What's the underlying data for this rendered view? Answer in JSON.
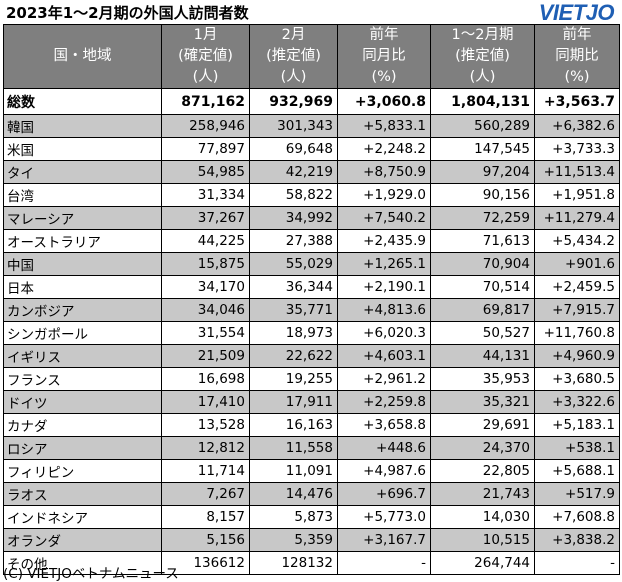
{
  "title": "2023年1～2月期の外国人訪問者数",
  "logo": "VIETJO",
  "headers": [
    {
      "lines": [
        "国・地域"
      ]
    },
    {
      "lines": [
        "1月",
        "(確定値)",
        "(人)"
      ]
    },
    {
      "lines": [
        "2月",
        "(推定値)",
        "(人)"
      ]
    },
    {
      "lines": [
        "前年",
        "同月比",
        "(%)"
      ]
    },
    {
      "lines": [
        "1～2月期",
        "(推定値)",
        "(人)"
      ]
    },
    {
      "lines": [
        "前年",
        "同期比",
        "(%)"
      ]
    }
  ],
  "total": [
    "総数",
    "871,162",
    "932,969",
    "+3,060.8",
    "1,804,131",
    "+3,563.7"
  ],
  "rows": [
    [
      "韓国",
      "258,946",
      "301,343",
      "+5,833.1",
      "560,289",
      "+6,382.6"
    ],
    [
      "米国",
      "77,897",
      "69,648",
      "+2,248.2",
      "147,545",
      "+3,733.3"
    ],
    [
      "タイ",
      "54,985",
      "42,219",
      "+8,750.9",
      "97,204",
      "+11,513.4"
    ],
    [
      "台湾",
      "31,334",
      "58,822",
      "+1,929.0",
      "90,156",
      "+1,951.8"
    ],
    [
      "マレーシア",
      "37,267",
      "34,992",
      "+7,540.2",
      "72,259",
      "+11,279.4"
    ],
    [
      "オーストラリア",
      "44,225",
      "27,388",
      "+2,435.9",
      "71,613",
      "+5,434.2"
    ],
    [
      "中国",
      "15,875",
      "55,029",
      "+1,265.1",
      "70,904",
      "+901.6"
    ],
    [
      "日本",
      "34,170",
      "36,344",
      "+2,190.1",
      "70,514",
      "+2,459.5"
    ],
    [
      "カンボジア",
      "34,046",
      "35,771",
      "+4,813.6",
      "69,817",
      "+7,915.7"
    ],
    [
      "シンガポール",
      "31,554",
      "18,973",
      "+6,020.3",
      "50,527",
      "+11,760.8"
    ],
    [
      "イギリス",
      "21,509",
      "22,622",
      "+4,603.1",
      "44,131",
      "+4,960.9"
    ],
    [
      "フランス",
      "16,698",
      "19,255",
      "+2,961.2",
      "35,953",
      "+3,680.5"
    ],
    [
      "ドイツ",
      "17,410",
      "17,911",
      "+2,259.8",
      "35,321",
      "+3,322.6"
    ],
    [
      "カナダ",
      "13,528",
      "16,163",
      "+3,658.8",
      "29,691",
      "+5,183.1"
    ],
    [
      "ロシア",
      "12,812",
      "11,558",
      "+448.6",
      "24,370",
      "+538.1"
    ],
    [
      "フィリピン",
      "11,714",
      "11,091",
      "+4,987.6",
      "22,805",
      "+5,688.1"
    ],
    [
      "ラオス",
      "7,267",
      "14,476",
      "+696.7",
      "21,743",
      "+517.9"
    ],
    [
      "インドネシア",
      "8,157",
      "5,873",
      "+5,773.0",
      "14,030",
      "+7,608.8"
    ],
    [
      "オランダ",
      "5,156",
      "5,359",
      "+3,167.7",
      "10,515",
      "+3,838.2"
    ],
    [
      "その他",
      "136612",
      "128132",
      "-",
      "264,744",
      "-"
    ]
  ],
  "footer": "(C) VIETJOベトナムニュース",
  "colors": {
    "header_bg": "#7f7f7f",
    "shade": "#c8c8c8",
    "logo": "#1f5fb4"
  }
}
